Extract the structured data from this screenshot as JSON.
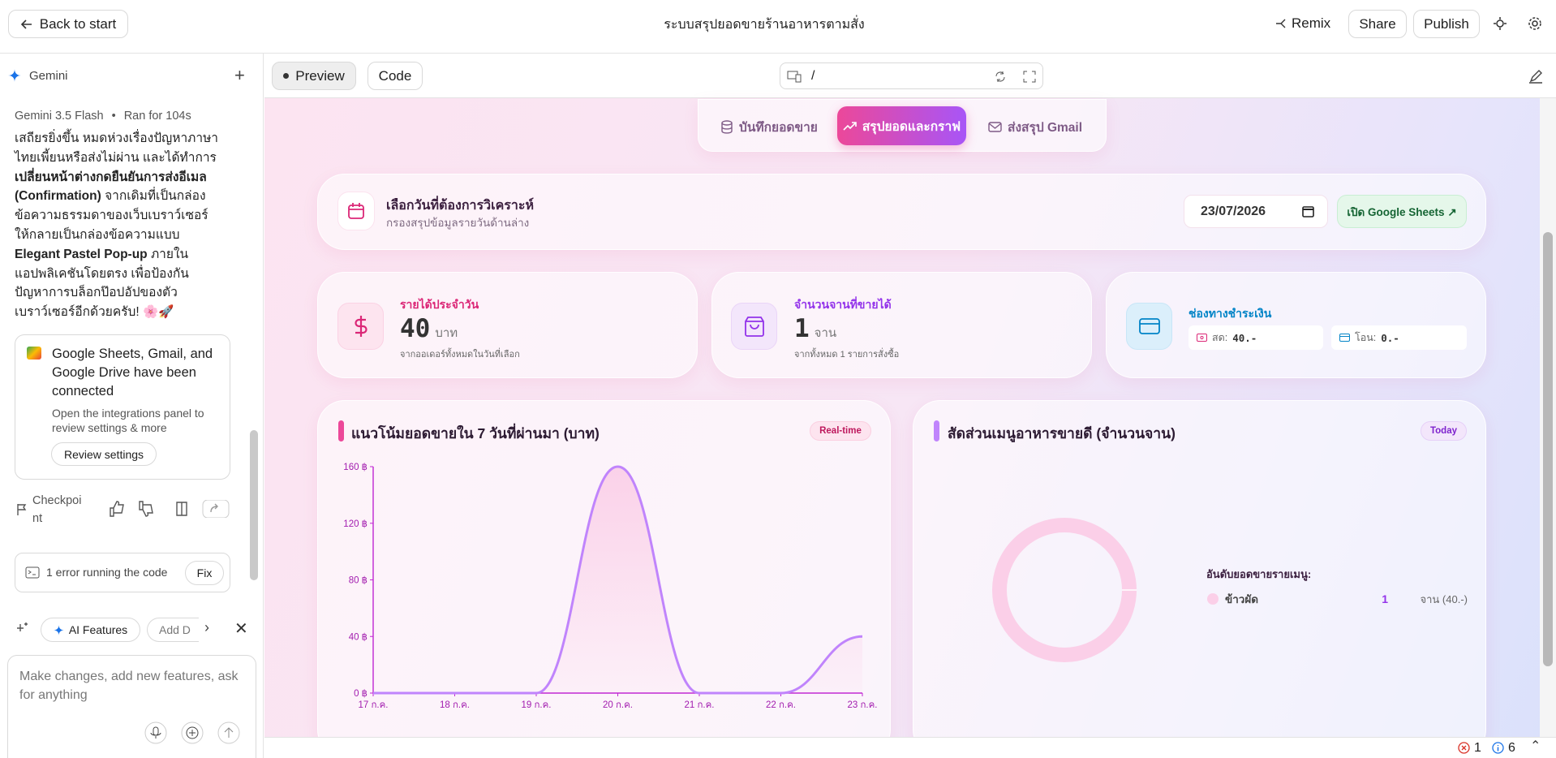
{
  "header": {
    "back": "Back to start",
    "title": "ระบบสรุปยอดขายร้านอาหารตามสั่ง",
    "remix": "Remix",
    "share": "Share",
    "publish": "Publish"
  },
  "sidebar": {
    "agent": "Gemini",
    "model": "Gemini 3.5 Flash",
    "run": "Ran for 104s",
    "message": [
      {
        "text": "เสถียรยิ่งขึ้น หมดห่วงเรื่องปัญหาภาษาไทยเพี้ยนหรือส่งไม่ผ่าน และได้ทำการ",
        "bold": false
      },
      {
        "text": "เปลี่ยนหน้าต่างกดยืนยันการส่งอีเมล (Confirmation)",
        "bold": true
      },
      {
        "text": " จากเดิมที่เป็นกล่องข้อความธรรมดาของเว็บเบราว์เซอร์ ให้กลายเป็นกล่องข้อความแบบ ",
        "bold": false
      },
      {
        "text": "Elegant Pastel Pop-up",
        "bold": true
      },
      {
        "text": " ภายในแอปพลิเคชันโดยตรง เพื่อป้องกันปัญหาการบล็อกป๊อปอัปของตัวเบราว์เซอร์อีกด้วยครับ! 🌸🚀",
        "bold": false
      }
    ],
    "integration": {
      "title": "Google Sheets, Gmail, and Google Drive have been connected",
      "body": "Open the integrations panel to review settings & more",
      "button": "Review settings"
    },
    "checkpoint": "Checkpoint",
    "error": "1 error running the code",
    "fix": "Fix",
    "chips": [
      "AI Features",
      "Add D"
    ],
    "placeholder": "Make changes, add new features, ask for anything"
  },
  "toolbar": {
    "preview": "Preview",
    "code": "Code",
    "path": "/"
  },
  "app": {
    "tabs": [
      "บันทึกยอดขาย",
      "สรุปยอดและกราฟ",
      "ส่งสรุป Gmail"
    ],
    "date_card": {
      "title": "เลือกวันที่ต้องการวิเคราะห์",
      "subtitle": "กรองสรุปข้อมูลรายวันด้านล่าง",
      "date": "23/07/2026",
      "sheets": "เปิด Google Sheets ↗"
    },
    "revenue": {
      "label": "รายได้ประจำวัน",
      "value": "40",
      "unit": "บาท",
      "note": "จากออเดอร์ทั้งหมดในวันที่เลือก"
    },
    "dishes": {
      "label": "จำนวนจานที่ขายได้",
      "value": "1",
      "unit": "จาน",
      "note": "จากทั้งหมด 1 รายการสั่งซื้อ"
    },
    "payment": {
      "label": "ช่องทางชำระเงิน",
      "cash_label": "สด:",
      "cash": "40.-",
      "transfer_label": "โอน:",
      "transfer": "0.-"
    }
  },
  "chart_data": [
    {
      "type": "line",
      "title": "แนวโน้มยอดขายใน 7 วันที่ผ่านมา (บาท)",
      "badge": "Real-time",
      "categories": [
        "17 ก.ค.",
        "18 ก.ค.",
        "19 ก.ค.",
        "20 ก.ค.",
        "21 ก.ค.",
        "22 ก.ค.",
        "23 ก.ค."
      ],
      "values": [
        0,
        0,
        0,
        160,
        0,
        0,
        40
      ],
      "color": "#c084fc",
      "ylim": [
        0,
        160
      ],
      "yticks": [
        {
          "value": 0,
          "label": "0 ฿"
        },
        {
          "value": 40,
          "label": "40 ฿"
        },
        {
          "value": 80,
          "label": "80 ฿"
        },
        {
          "value": 120,
          "label": "120 ฿"
        },
        {
          "value": 160,
          "label": "160 ฿"
        }
      ]
    },
    {
      "type": "pie",
      "title": "สัดส่วนเมนูอาหารขายดี (จำนวนจาน)",
      "badge": "Today",
      "legend_title": "อันดับยอดขายรายเมนู:",
      "categories": [
        "ข้าวผัด"
      ],
      "values": [
        1
      ],
      "details": [
        "จาน (40.-)"
      ],
      "colors": [
        "#fbcfe8"
      ]
    }
  ],
  "status": {
    "errors": "1",
    "infos": "6"
  }
}
